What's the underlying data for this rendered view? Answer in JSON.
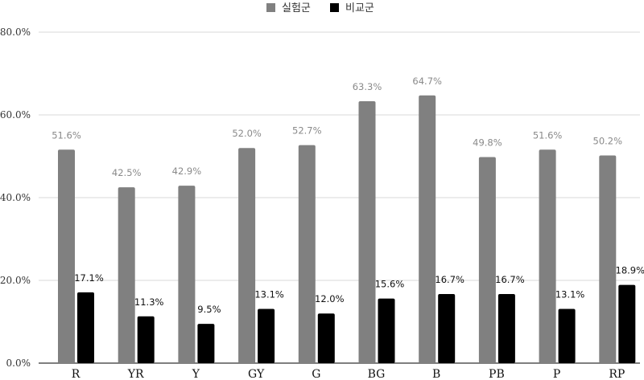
{
  "chart_data": {
    "type": "bar",
    "title": "",
    "xlabel": "",
    "ylabel": "",
    "categories": [
      "R",
      "YR",
      "Y",
      "GY",
      "G",
      "BG",
      "B",
      "PB",
      "P",
      "RP"
    ],
    "series": [
      {
        "name": "실험군",
        "color": "#808080",
        "label_color": "#8a8a8a",
        "values": [
          51.6,
          42.5,
          42.9,
          52.0,
          52.7,
          63.3,
          64.7,
          49.8,
          51.6,
          50.2
        ]
      },
      {
        "name": "비교군",
        "color": "#000000",
        "label_color": "#111111",
        "values": [
          17.1,
          11.3,
          9.5,
          13.1,
          12.0,
          15.6,
          16.7,
          16.7,
          13.1,
          18.9
        ]
      }
    ],
    "ylim": [
      0,
      80
    ],
    "yticks": [
      0,
      20,
      40,
      60,
      80
    ],
    "ytick_labels": [
      "0.0%",
      "20.0%",
      "40.0%",
      "60.0%",
      "80.0%"
    ],
    "value_suffix": "%",
    "grid": true,
    "legend_position": "top-center"
  }
}
